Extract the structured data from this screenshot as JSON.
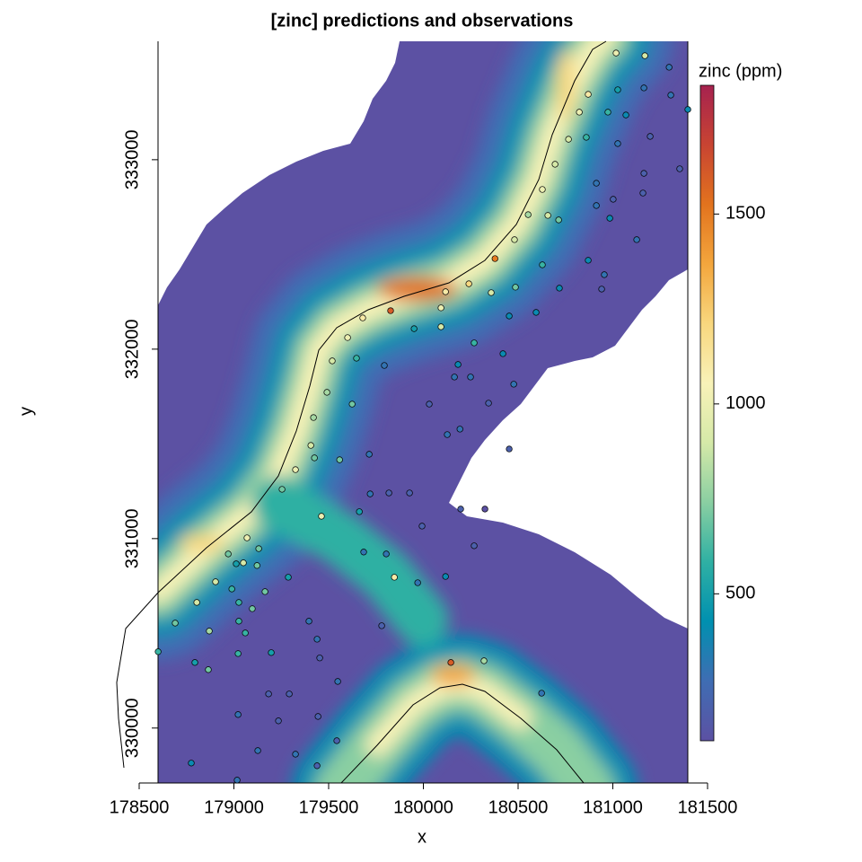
{
  "chart_data": {
    "type": "scatter",
    "title": "[zinc] predictions and observations",
    "x_label": "x",
    "y_label": "y",
    "xlim": [
      178500,
      181500
    ],
    "xticks": [
      178500,
      179000,
      179500,
      180000,
      180500,
      181000,
      181500
    ],
    "ylim": [
      329710,
      333625
    ],
    "yticks": [
      330000,
      331000,
      332000,
      333000
    ],
    "colorbar": {
      "title": "zinc (ppm)",
      "zlim": [
        113,
        1839
      ],
      "ticks": [
        500,
        1000,
        1500
      ],
      "colors": [
        "#5C51A3",
        "#3F6DB3",
        "#0090B0",
        "#2FB0A3",
        "#8ACFA2",
        "#D5E9A8",
        "#F8F2B8",
        "#F8D77E",
        "#F3A63D",
        "#E2731E",
        "#C84432",
        "#A6224F"
      ]
    },
    "points": {
      "x": [
        181017,
        181169,
        181297,
        180870,
        181026,
        181164,
        181306,
        181396,
        180823,
        180974,
        181069,
        181197,
        180766,
        180860,
        181026,
        180695,
        181164,
        181353,
        180628,
        180913,
        181002,
        181159,
        180553,
        180657,
        180714,
        180913,
        180984,
        181126,
        180481,
        180378,
        180628,
        180870,
        180955,
        180941,
        180240,
        180117,
        180358,
        180486,
        180718,
        180093,
        179680,
        179827,
        180595,
        180453,
        180093,
        179600,
        179951,
        180268,
        180420,
        179519,
        179647,
        179794,
        180183,
        180164,
        180249,
        180477,
        180344,
        179491,
        179420,
        180031,
        179624,
        180193,
        180126,
        179406,
        180453,
        179425,
        179558,
        179325,
        179714,
        179254,
        179719,
        179818,
        179927,
        180197,
        180325,
        179462,
        179662,
        179993,
        179069,
        179131,
        178970,
        179050,
        179012,
        179122,
        178903,
        178989,
        179164,
        179685,
        179804,
        180268,
        179287,
        179847,
        179970,
        180117,
        178804,
        179026,
        179097,
        178690,
        179026,
        178870,
        179060,
        179396,
        179780,
        179439,
        178600,
        179022,
        179197,
        178794,
        178865,
        179453,
        180145,
        180320,
        179548,
        179183,
        179292,
        180624,
        179022,
        179235,
        179444,
        179543,
        179126,
        179325,
        178775,
        179439,
        179017
      ],
      "y": [
        333563,
        333549,
        333488,
        333345,
        333369,
        333379,
        333341,
        333265,
        333251,
        333251,
        333236,
        333123,
        333108,
        333118,
        333085,
        332976,
        332928,
        332952,
        332843,
        332876,
        332791,
        332824,
        332710,
        332706,
        332682,
        332758,
        332691,
        332578,
        332578,
        332478,
        332445,
        332469,
        332393,
        332317,
        332345,
        332303,
        332298,
        332327,
        332322,
        332218,
        332165,
        332203,
        332194,
        332175,
        332118,
        332061,
        332108,
        332033,
        331976,
        331938,
        331952,
        331914,
        331919,
        331853,
        331853,
        331815,
        331715,
        331772,
        331639,
        331710,
        331710,
        331578,
        331549,
        331492,
        331473,
        331426,
        331416,
        331364,
        331445,
        331260,
        331236,
        331241,
        331241,
        331156,
        331156,
        331118,
        331142,
        331066,
        331004,
        330947,
        330919,
        330872,
        330867,
        330858,
        330772,
        330734,
        330720,
        330929,
        330919,
        330962,
        330796,
        330796,
        330767,
        330800,
        330663,
        330663,
        330630,
        330554,
        330564,
        330512,
        330502,
        330564,
        330540,
        330469,
        330403,
        330393,
        330398,
        330346,
        330308,
        330370,
        330346,
        330355,
        330246,
        330180,
        330180,
        330184,
        330071,
        330038,
        330061,
        329933,
        329881,
        329862,
        329815,
        329801,
        329725
      ],
      "values": [
        1000,
        900,
        300,
        1100,
        500,
        300,
        300,
        400,
        1000,
        600,
        400,
        200,
        900,
        600,
        300,
        900,
        200,
        200,
        1000,
        300,
        200,
        200,
        800,
        900,
        700,
        300,
        400,
        300,
        900,
        1500,
        600,
        400,
        300,
        200,
        1200,
        1100,
        900,
        700,
        400,
        1000,
        1100,
        1600,
        400,
        400,
        900,
        1000,
        500,
        600,
        400,
        900,
        600,
        300,
        400,
        300,
        300,
        300,
        200,
        800,
        800,
        200,
        700,
        300,
        300,
        900,
        200,
        700,
        700,
        1000,
        300,
        700,
        300,
        200,
        200,
        200,
        100,
        1000,
        500,
        200,
        1000,
        700,
        700,
        900,
        500,
        700,
        900,
        600,
        700,
        300,
        300,
        200,
        500,
        1100,
        300,
        400,
        900,
        600,
        700,
        700,
        600,
        800,
        600,
        300,
        200,
        300,
        600,
        600,
        500,
        500,
        700,
        200,
        1600,
        800,
        300,
        200,
        200,
        300,
        300,
        200,
        200,
        200,
        300,
        300,
        400,
        200,
        300
      ]
    }
  }
}
